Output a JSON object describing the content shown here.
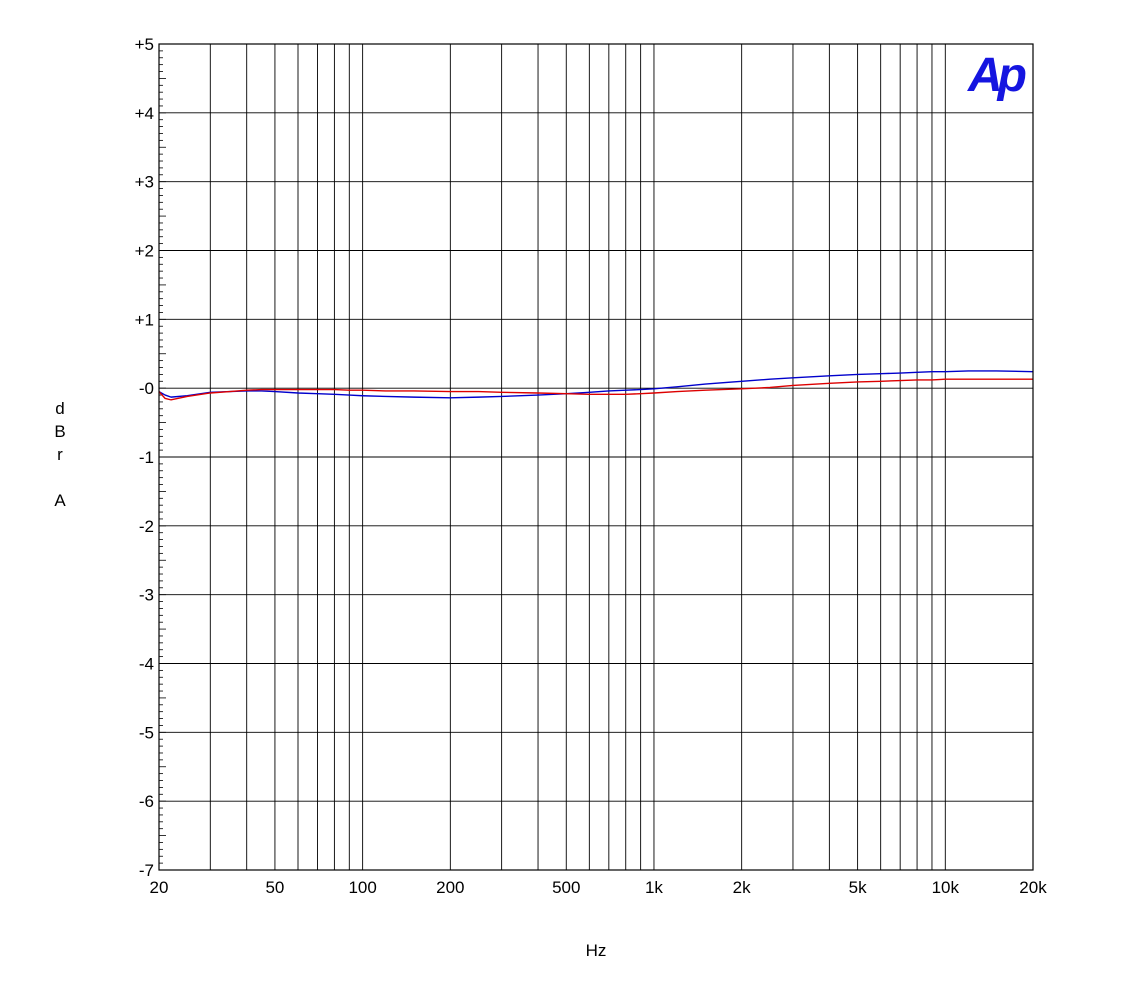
{
  "chart_data": {
    "type": "line",
    "title": "",
    "xlabel": "Hz",
    "ylabel": "dBr A",
    "ylabel_chars": [
      "d",
      "B",
      "r",
      "",
      "A"
    ],
    "x_scale": "log",
    "xlim": [
      20,
      20000
    ],
    "ylim": [
      -7,
      5
    ],
    "grid": true,
    "x_ticks": [
      {
        "value": 20,
        "label": "20"
      },
      {
        "value": 50,
        "label": "50"
      },
      {
        "value": 100,
        "label": "100"
      },
      {
        "value": 200,
        "label": "200"
      },
      {
        "value": 500,
        "label": "500"
      },
      {
        "value": 1000,
        "label": "1k"
      },
      {
        "value": 2000,
        "label": "2k"
      },
      {
        "value": 5000,
        "label": "5k"
      },
      {
        "value": 10000,
        "label": "10k"
      },
      {
        "value": 20000,
        "label": "20k"
      }
    ],
    "x_grid": [
      20,
      30,
      40,
      50,
      60,
      70,
      80,
      90,
      100,
      200,
      300,
      400,
      500,
      600,
      700,
      800,
      900,
      1000,
      2000,
      3000,
      4000,
      5000,
      6000,
      7000,
      8000,
      9000,
      10000,
      20000
    ],
    "y_ticks": [
      {
        "value": 5,
        "label": "+5"
      },
      {
        "value": 4,
        "label": "+4"
      },
      {
        "value": 3,
        "label": "+3"
      },
      {
        "value": 2,
        "label": "+2"
      },
      {
        "value": 1,
        "label": "+1"
      },
      {
        "value": 0,
        "label": "-0"
      },
      {
        "value": -1,
        "label": "-1"
      },
      {
        "value": -2,
        "label": "-2"
      },
      {
        "value": -3,
        "label": "-3"
      },
      {
        "value": -4,
        "label": "-4"
      },
      {
        "value": -5,
        "label": "-5"
      },
      {
        "value": -6,
        "label": "-6"
      },
      {
        "value": -7,
        "label": "-7"
      }
    ],
    "logo_text": "Ap",
    "series": [
      {
        "color": "#0000cc",
        "x": [
          20,
          21,
          22,
          25,
          30,
          35,
          40,
          45,
          50,
          60,
          70,
          80,
          90,
          100,
          120,
          150,
          200,
          250,
          300,
          400,
          500,
          600,
          700,
          800,
          900,
          1000,
          1200,
          1500,
          2000,
          2500,
          3000,
          4000,
          5000,
          6000,
          7000,
          8000,
          9000,
          10000,
          12000,
          15000,
          20000
        ],
        "y": [
          -0.05,
          -0.1,
          -0.13,
          -0.11,
          -0.06,
          -0.05,
          -0.04,
          -0.04,
          -0.05,
          -0.07,
          -0.08,
          -0.09,
          -0.1,
          -0.11,
          -0.12,
          -0.13,
          -0.14,
          -0.13,
          -0.12,
          -0.1,
          -0.08,
          -0.06,
          -0.04,
          -0.03,
          -0.02,
          -0.01,
          0.02,
          0.06,
          0.1,
          0.13,
          0.15,
          0.18,
          0.2,
          0.21,
          0.22,
          0.23,
          0.24,
          0.24,
          0.25,
          0.25,
          0.24
        ]
      },
      {
        "color": "#dd0000",
        "x": [
          20,
          21,
          22,
          25,
          30,
          35,
          40,
          45,
          50,
          60,
          70,
          80,
          90,
          100,
          120,
          150,
          200,
          250,
          300,
          400,
          500,
          600,
          700,
          800,
          900,
          1000,
          1200,
          1500,
          2000,
          2500,
          3000,
          4000,
          5000,
          6000,
          7000,
          8000,
          9000,
          10000,
          12000,
          15000,
          20000
        ],
        "y": [
          -0.05,
          -0.15,
          -0.17,
          -0.12,
          -0.07,
          -0.05,
          -0.03,
          -0.02,
          -0.02,
          -0.02,
          -0.02,
          -0.02,
          -0.03,
          -0.03,
          -0.04,
          -0.04,
          -0.05,
          -0.05,
          -0.06,
          -0.07,
          -0.08,
          -0.09,
          -0.09,
          -0.09,
          -0.08,
          -0.07,
          -0.05,
          -0.03,
          -0.01,
          0.01,
          0.04,
          0.07,
          0.09,
          0.1,
          0.11,
          0.12,
          0.12,
          0.13,
          0.13,
          0.13,
          0.13
        ]
      }
    ]
  }
}
